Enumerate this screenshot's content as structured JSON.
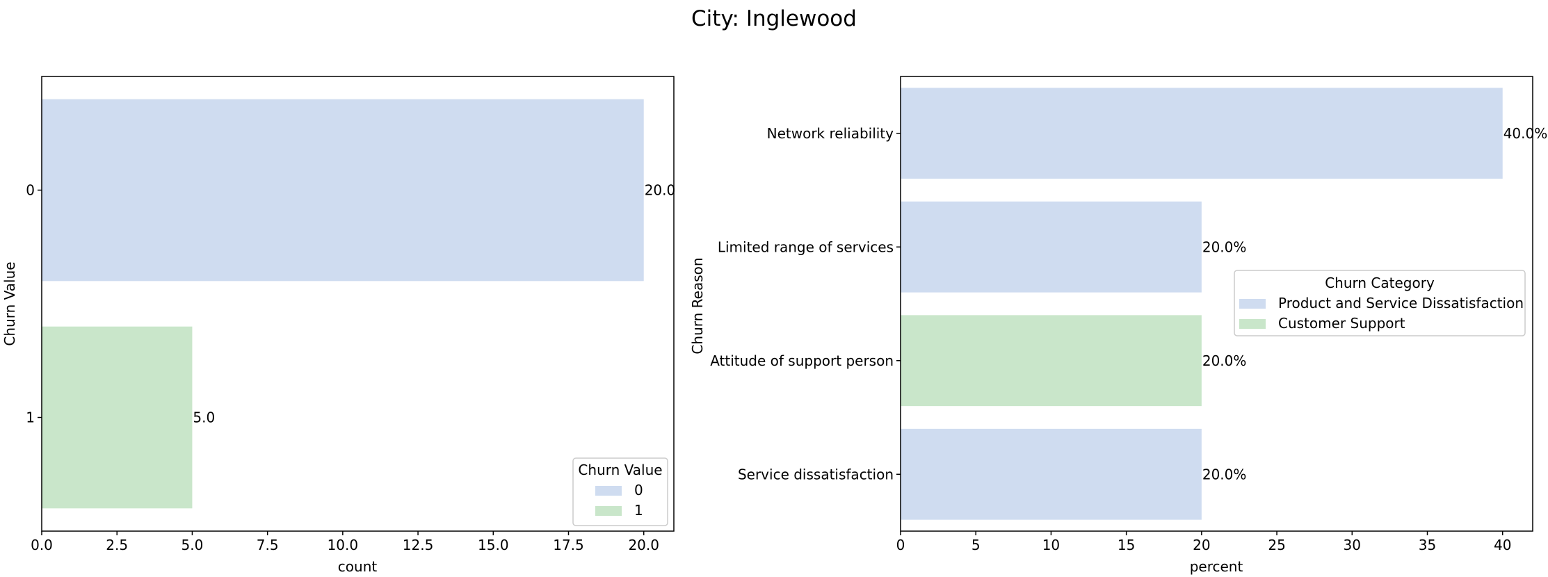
{
  "suptitle": "City: Inglewood",
  "colors": {
    "0": "#cfdcf0",
    "1": "#c9e6ca",
    "Product and Service Dissatisfaction": "#cfdcf0",
    "Customer Support": "#c9e6ca"
  },
  "chart_data": [
    {
      "type": "bar",
      "orientation": "horizontal",
      "title": "",
      "categories": [
        "0",
        "1"
      ],
      "values": [
        20.0,
        5.0
      ],
      "data_labels": [
        "20.0",
        "5.0"
      ],
      "bar_colors": [
        "#cfdcf0",
        "#c9e6ca"
      ],
      "xlabel": "count",
      "ylabel": "Churn Value",
      "xlim": [
        0,
        21
      ],
      "xticks": [
        "0.0",
        "2.5",
        "5.0",
        "7.5",
        "10.0",
        "12.5",
        "15.0",
        "17.5",
        "20.0"
      ],
      "legend": {
        "title": "Churn Value",
        "entries": [
          "0",
          "1"
        ],
        "placement": "lower right"
      }
    },
    {
      "type": "bar",
      "orientation": "horizontal",
      "title": "",
      "categories": [
        "Network reliability",
        "Limited range of services",
        "Attitude of support person",
        "Service dissatisfaction"
      ],
      "values": [
        40.0,
        20.0,
        20.0,
        20.0
      ],
      "data_labels": [
        "40.0%",
        "20.0%",
        "20.0%",
        "20.0%"
      ],
      "bar_colors": [
        "#cfdcf0",
        "#cfdcf0",
        "#c9e6ca",
        "#cfdcf0"
      ],
      "xlabel": "percent",
      "ylabel": "Churn Reason",
      "xlim": [
        0,
        42
      ],
      "xticks": [
        "0",
        "5",
        "10",
        "15",
        "20",
        "25",
        "30",
        "35",
        "40"
      ],
      "legend": {
        "title": "Churn Category",
        "entries": [
          "Product and Service Dissatisfaction",
          "Customer Support"
        ],
        "placement": "center right"
      }
    }
  ]
}
